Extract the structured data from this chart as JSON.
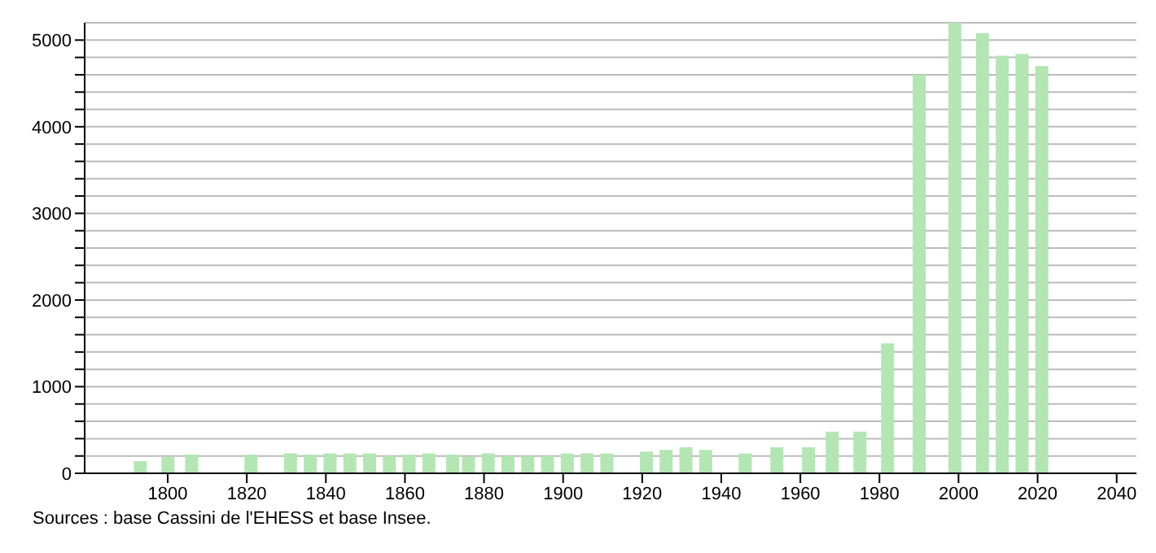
{
  "chart_data": {
    "type": "bar",
    "x": [
      1793,
      1800,
      1806,
      1821,
      1831,
      1836,
      1841,
      1846,
      1851,
      1856,
      1861,
      1866,
      1872,
      1876,
      1881,
      1886,
      1891,
      1896,
      1901,
      1906,
      1911,
      1921,
      1926,
      1931,
      1936,
      1946,
      1954,
      1962,
      1968,
      1975,
      1982,
      1990,
      1999,
      2006,
      2011,
      2016,
      2021
    ],
    "values": [
      140,
      190,
      215,
      215,
      230,
      215,
      230,
      230,
      230,
      200,
      215,
      230,
      215,
      190,
      230,
      200,
      200,
      200,
      230,
      230,
      230,
      250,
      270,
      300,
      270,
      230,
      300,
      300,
      480,
      480,
      1500,
      4600,
      5200,
      5080,
      4820,
      4840,
      4700
    ],
    "color": "#b3e6b3",
    "xlim": [
      1779,
      2045
    ],
    "xticks": [
      1800,
      1820,
      1840,
      1860,
      1880,
      1900,
      1920,
      1940,
      1960,
      1980,
      2000,
      2020,
      2040
    ],
    "ylim": [
      0,
      5200
    ],
    "yticks": [
      0,
      {
        "value": 200,
        "label": null
      },
      {
        "value": 400,
        "label": null
      },
      {
        "value": 600,
        "label": null
      },
      {
        "value": 800,
        "label": null
      },
      1000,
      {
        "value": 1200,
        "label": null
      },
      {
        "value": 1400,
        "label": null
      },
      {
        "value": 1600,
        "label": null
      },
      {
        "value": 1800,
        "label": null
      },
      2000,
      {
        "value": 2200,
        "label": null
      },
      {
        "value": 2400,
        "label": null
      },
      {
        "value": 2600,
        "label": null
      },
      {
        "value": 2800,
        "label": null
      },
      3000,
      {
        "value": 3200,
        "label": null
      },
      {
        "value": 3400,
        "label": null
      },
      {
        "value": 3600,
        "label": null
      },
      {
        "value": 3800,
        "label": null
      },
      4000,
      {
        "value": 4200,
        "label": null
      },
      {
        "value": 4400,
        "label": null
      },
      {
        "value": 4600,
        "label": null
      },
      {
        "value": 4800,
        "label": null
      },
      5000
    ],
    "grid": "y",
    "annotations": [
      "Sources : base Cassini de l'EHESS et base Insee."
    ]
  }
}
